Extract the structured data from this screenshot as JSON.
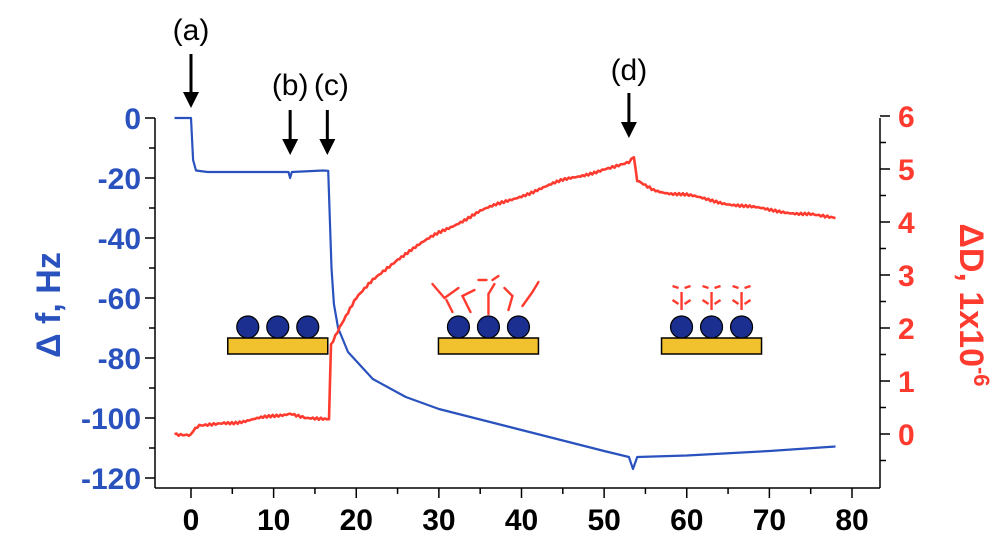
{
  "chart_data": {
    "type": "line",
    "x": [],
    "xlim": [
      -3,
      80
    ],
    "x_ticks": [
      "0",
      "10",
      "20",
      "30",
      "40",
      "50",
      "60",
      "70",
      "80"
    ],
    "grid": false,
    "axes": {
      "left": {
        "label": "Δ f, Hz",
        "color": "#2a52be",
        "ylim": [
          -120,
          0
        ],
        "ticks": [
          "0",
          "-20",
          "-40",
          "-60",
          "-80",
          "-100",
          "-120"
        ]
      },
      "right": {
        "label": "ΔD, 1x10",
        "label_exponent": "-6",
        "color": "#ff3b2f",
        "ylim": [
          -1,
          6
        ],
        "ticks": [
          "0",
          "1",
          "2",
          "3",
          "4",
          "5",
          "6"
        ]
      }
    },
    "series": [
      {
        "axis": "left",
        "color": "#2a52be",
        "points": [
          [
            -2,
            0
          ],
          [
            0,
            0
          ],
          [
            0.25,
            -14
          ],
          [
            0.6,
            -17.5
          ],
          [
            2,
            -18
          ],
          [
            11.8,
            -18
          ],
          [
            12,
            -20
          ],
          [
            12.2,
            -18
          ],
          [
            16,
            -17.5
          ],
          [
            16.6,
            -17.6
          ],
          [
            17.0,
            -50
          ],
          [
            17.3,
            -62
          ],
          [
            17.8,
            -70
          ],
          [
            19,
            -78
          ],
          [
            22,
            -87
          ],
          [
            26,
            -93
          ],
          [
            30,
            -97
          ],
          [
            40,
            -104
          ],
          [
            50,
            -111
          ],
          [
            53,
            -113
          ],
          [
            53.5,
            -117
          ],
          [
            54,
            -113
          ],
          [
            60,
            -112.5
          ],
          [
            70,
            -111
          ],
          [
            78,
            -109.5
          ]
        ]
      },
      {
        "axis": "right",
        "color": "#ff3b2f",
        "points": [
          [
            -2,
            0
          ],
          [
            0,
            0
          ],
          [
            0.3,
            0.08
          ],
          [
            1,
            0.18
          ],
          [
            4,
            0.2
          ],
          [
            8,
            0.28
          ],
          [
            12,
            0.4
          ],
          [
            14,
            0.32
          ],
          [
            16.7,
            0.3
          ],
          [
            16.95,
            1.7
          ],
          [
            18,
            2.0
          ],
          [
            20,
            2.55
          ],
          [
            22,
            2.9
          ],
          [
            25,
            3.3
          ],
          [
            30,
            3.8
          ],
          [
            35,
            4.2
          ],
          [
            40,
            4.5
          ],
          [
            45,
            4.78
          ],
          [
            50,
            5.0
          ],
          [
            53,
            5.15
          ],
          [
            53.6,
            5.2
          ],
          [
            54,
            4.8
          ],
          [
            56,
            4.6
          ],
          [
            60,
            4.5
          ],
          [
            65,
            4.35
          ],
          [
            70,
            4.22
          ],
          [
            75,
            4.15
          ],
          [
            78,
            4.1
          ]
        ]
      }
    ],
    "annotations": [
      {
        "label": "(a)",
        "x": 0
      },
      {
        "label": "(b)",
        "x": 12
      },
      {
        "label": "(c)",
        "x": 16.5
      },
      {
        "label": "(d)",
        "x": 53
      }
    ],
    "insets": [
      {
        "name": "nanoparticle-layer",
        "center_x": 10.5,
        "variant": "plain"
      },
      {
        "name": "nanoparticle-antibody-random",
        "center_x": 36,
        "variant": "random"
      },
      {
        "name": "nanoparticle-antibody-oriented",
        "center_x": 63,
        "variant": "oriented"
      }
    ],
    "colors": {
      "substrate": "#f2c12e",
      "particle": "#1a2f8f",
      "antibody": "#ff3b2f"
    }
  }
}
